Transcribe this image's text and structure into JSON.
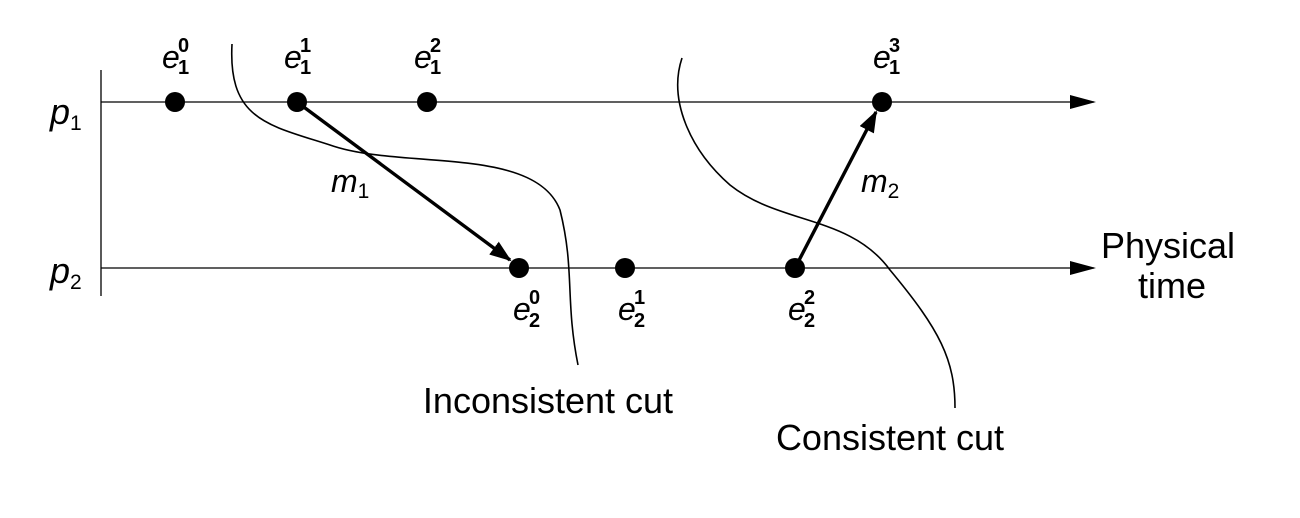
{
  "processes": [
    {
      "name": "p",
      "index": "1"
    },
    {
      "name": "p",
      "index": "2"
    }
  ],
  "time_axis": {
    "label_line1": "Physical",
    "label_line2": "time"
  },
  "events": [
    {
      "base": "e",
      "sub": "1",
      "sup": "0"
    },
    {
      "base": "e",
      "sub": "1",
      "sup": "1"
    },
    {
      "base": "e",
      "sub": "1",
      "sup": "2"
    },
    {
      "base": "e",
      "sub": "1",
      "sup": "3"
    },
    {
      "base": "e",
      "sub": "2",
      "sup": "0"
    },
    {
      "base": "e",
      "sub": "2",
      "sup": "1"
    },
    {
      "base": "e",
      "sub": "2",
      "sup": "2"
    }
  ],
  "messages": [
    {
      "base": "m",
      "sub": "1",
      "from": "e_1^1",
      "to": "e_2^0"
    },
    {
      "base": "m",
      "sub": "2",
      "from": "e_2^2",
      "to": "e_1^3"
    }
  ],
  "cuts": [
    {
      "label": "Inconsistent cut"
    },
    {
      "label": "Consistent cut"
    }
  ]
}
